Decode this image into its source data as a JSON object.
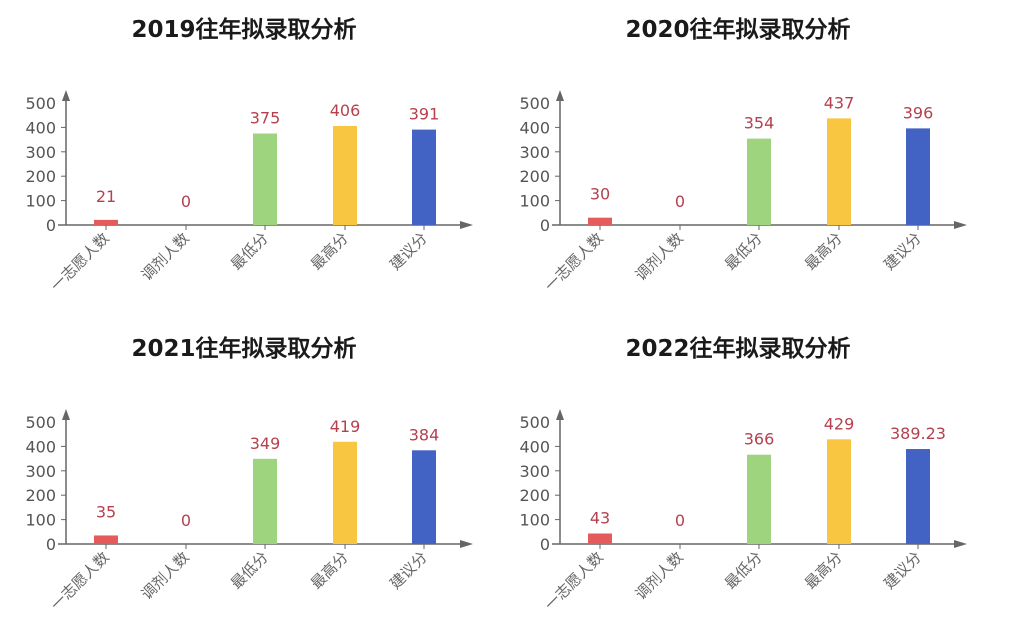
{
  "categories": [
    "一志愿人数",
    "调剂人数",
    "最低分",
    "最高分",
    "建议分"
  ],
  "bar_colors": [
    "#e55a5a",
    "#cccccc",
    "#9fd47f",
    "#f8c640",
    "#4263c4"
  ],
  "label_color": "#b5404e",
  "y_ticks": [
    "0",
    "100",
    "200",
    "300",
    "400",
    "500"
  ],
  "charts": [
    {
      "title": "2019往年拟录取分析",
      "values": [
        21,
        0,
        375,
        406,
        391
      ],
      "labels": [
        "21",
        "0",
        "375",
        "406",
        "391"
      ]
    },
    {
      "title": "2020往年拟录取分析",
      "values": [
        30,
        0,
        354,
        437,
        396
      ],
      "labels": [
        "30",
        "0",
        "354",
        "437",
        "396"
      ]
    },
    {
      "title": "2021往年拟录取分析",
      "values": [
        35,
        0,
        349,
        419,
        384
      ],
      "labels": [
        "35",
        "0",
        "349",
        "419",
        "384"
      ]
    },
    {
      "title": "2022往年拟录取分析",
      "values": [
        43,
        0,
        366,
        429,
        389.23
      ],
      "labels": [
        "43",
        "0",
        "366",
        "429",
        "389.23"
      ]
    }
  ],
  "chart_data": [
    {
      "type": "bar",
      "title": "2019往年拟录取分析",
      "categories": [
        "一志愿人数",
        "调剂人数",
        "最低分",
        "最高分",
        "建议分"
      ],
      "values": [
        21,
        0,
        375,
        406,
        391
      ],
      "xlabel": "",
      "ylabel": "",
      "ylim": [
        0,
        500
      ],
      "yticks": [
        0,
        100,
        200,
        300,
        400,
        500
      ],
      "grid": false,
      "legend": null
    },
    {
      "type": "bar",
      "title": "2020往年拟录取分析",
      "categories": [
        "一志愿人数",
        "调剂人数",
        "最低分",
        "最高分",
        "建议分"
      ],
      "values": [
        30,
        0,
        354,
        437,
        396
      ],
      "xlabel": "",
      "ylabel": "",
      "ylim": [
        0,
        500
      ],
      "yticks": [
        0,
        100,
        200,
        300,
        400,
        500
      ],
      "grid": false,
      "legend": null
    },
    {
      "type": "bar",
      "title": "2021往年拟录取分析",
      "categories": [
        "一志愿人数",
        "调剂人数",
        "最低分",
        "最高分",
        "建议分"
      ],
      "values": [
        35,
        0,
        349,
        419,
        384
      ],
      "xlabel": "",
      "ylabel": "",
      "ylim": [
        0,
        500
      ],
      "yticks": [
        0,
        100,
        200,
        300,
        400,
        500
      ],
      "grid": false,
      "legend": null
    },
    {
      "type": "bar",
      "title": "2022往年拟录取分析",
      "categories": [
        "一志愿人数",
        "调剂人数",
        "最低分",
        "最高分",
        "建议分"
      ],
      "values": [
        43,
        0,
        366,
        429,
        389.23
      ],
      "xlabel": "",
      "ylabel": "",
      "ylim": [
        0,
        500
      ],
      "yticks": [
        0,
        100,
        200,
        300,
        400,
        500
      ],
      "grid": false,
      "legend": null
    }
  ]
}
